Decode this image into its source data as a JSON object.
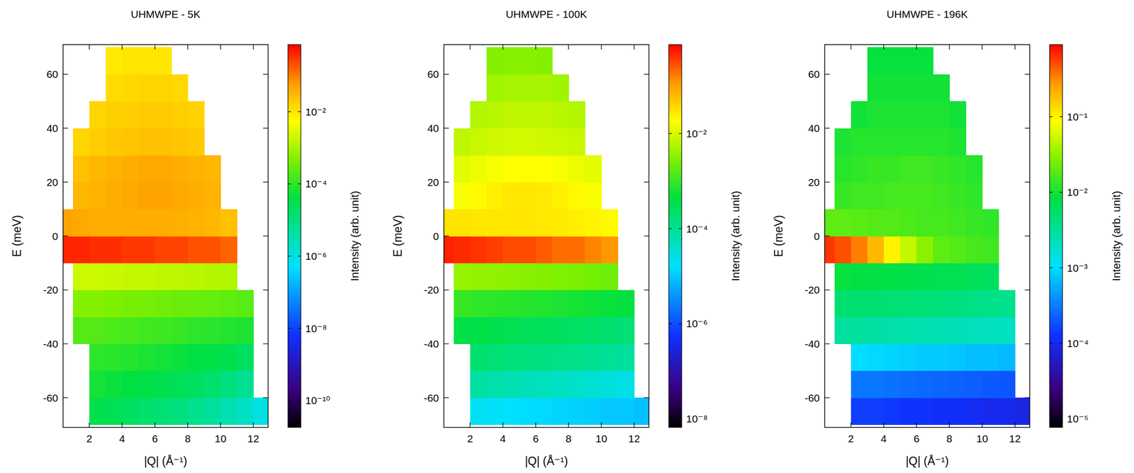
{
  "chart_data": [
    {
      "type": "heatmap",
      "title": "UHMWPE - 5K",
      "x_label": "|Q| (Å⁻¹)",
      "y_label": "E (meV)",
      "xlim": [
        0.4,
        12.9
      ],
      "ylim": [
        -71,
        71
      ],
      "xticks": [
        2,
        4,
        6,
        8,
        10,
        12
      ],
      "yticks": [
        -60,
        -40,
        -20,
        0,
        20,
        40,
        60
      ],
      "x": [
        0.5,
        1.5,
        2.5,
        3.5,
        4.5,
        5.5,
        6.5,
        7.5,
        8.5,
        9.5,
        10.5,
        11.5,
        12.5
      ],
      "y": [
        -65,
        -55,
        -45,
        -35,
        -25,
        -15,
        -5,
        5,
        15,
        25,
        35,
        45,
        55,
        65
      ],
      "values": [
        [
          null,
          null,
          3e-05,
          2.5e-05,
          2e-05,
          1.5e-05,
          1.2e-05,
          1e-05,
          7e-06,
          5e-06,
          3e-06,
          2e-06,
          1e-06
        ],
        [
          null,
          null,
          6e-05,
          5e-05,
          4e-05,
          3.5e-05,
          3e-05,
          2.5e-05,
          2e-05,
          1.5e-05,
          1e-05,
          6e-06,
          null
        ],
        [
          null,
          null,
          0.0001,
          9e-05,
          8e-05,
          7e-05,
          6e-05,
          5e-05,
          4e-05,
          3.5e-05,
          3e-05,
          2e-05,
          null
        ],
        [
          null,
          0.0002,
          0.0002,
          0.00018,
          0.00016,
          0.00014,
          0.00013,
          0.00012,
          0.0001,
          9e-05,
          8e-05,
          7e-05,
          null
        ],
        [
          null,
          0.0005,
          0.0005,
          0.00045,
          0.0004,
          0.00038,
          0.00035,
          0.00032,
          0.0003,
          0.00028,
          0.00025,
          0.00022,
          null
        ],
        [
          null,
          0.002,
          0.002,
          0.0019,
          0.0018,
          0.0017,
          0.0016,
          0.0015,
          0.0014,
          0.0013,
          0.0012,
          null,
          null
        ],
        [
          0.4,
          0.4,
          0.35,
          0.35,
          0.3,
          0.3,
          0.25,
          0.25,
          0.2,
          0.2,
          0.15,
          null,
          null
        ],
        [
          0.05,
          0.045,
          0.04,
          0.04,
          0.04,
          0.04,
          0.04,
          0.038,
          0.035,
          0.03,
          0.025,
          null,
          null
        ],
        [
          null,
          0.03,
          0.035,
          0.04,
          0.045,
          0.05,
          0.05,
          0.045,
          0.04,
          0.035,
          null,
          null,
          null
        ],
        [
          null,
          0.025,
          0.03,
          0.035,
          0.04,
          0.045,
          0.045,
          0.04,
          0.035,
          0.03,
          null,
          null,
          null
        ],
        [
          null,
          0.015,
          0.018,
          0.02,
          0.022,
          0.024,
          0.024,
          0.022,
          0.02,
          null,
          null,
          null,
          null
        ],
        [
          null,
          null,
          0.015,
          0.017,
          0.018,
          0.019,
          0.019,
          0.018,
          0.016,
          null,
          null,
          null,
          null
        ],
        [
          null,
          null,
          null,
          0.013,
          0.014,
          0.015,
          0.015,
          0.014,
          null,
          null,
          null,
          null,
          null
        ],
        [
          null,
          null,
          null,
          0.009,
          0.01,
          0.01,
          0.01,
          null,
          null,
          null,
          null,
          null,
          null
        ]
      ],
      "colorbar_label": "Intensity (arb. unit)",
      "colorbar_range": [
        1.8e-11,
        0.72
      ],
      "colorbar_ticks": [
        {
          "value": 1e-10,
          "label": "10⁻¹⁰"
        },
        {
          "value": 1e-08,
          "label": "10⁻⁸"
        },
        {
          "value": 1e-06,
          "label": "10⁻⁶"
        },
        {
          "value": 0.0001,
          "label": "10⁻⁴"
        },
        {
          "value": 0.01,
          "label": "10⁻²"
        }
      ]
    },
    {
      "type": "heatmap",
      "title": "UHMWPE - 100K",
      "x_label": "|Q| (Å⁻¹)",
      "y_label": "E (meV)",
      "xlim": [
        0.4,
        12.9
      ],
      "ylim": [
        -71,
        71
      ],
      "xticks": [
        2,
        4,
        6,
        8,
        10,
        12
      ],
      "yticks": [
        -60,
        -40,
        -20,
        0,
        20,
        40,
        60
      ],
      "x": [
        0.5,
        1.5,
        2.5,
        3.5,
        4.5,
        5.5,
        6.5,
        7.5,
        8.5,
        9.5,
        10.5,
        11.5,
        12.5
      ],
      "y": [
        -65,
        -55,
        -45,
        -35,
        -25,
        -15,
        -5,
        5,
        15,
        25,
        35,
        45,
        55,
        65
      ],
      "values": [
        [
          null,
          null,
          2e-05,
          1.8e-05,
          1.6e-05,
          1.5e-05,
          1.4e-05,
          1.3e-05,
          1.2e-05,
          1.1e-05,
          1e-05,
          1e-05,
          9e-06
        ],
        [
          null,
          null,
          8e-05,
          7e-05,
          6e-05,
          5.5e-05,
          5e-05,
          4.5e-05,
          4e-05,
          3.5e-05,
          3e-05,
          2.5e-05,
          null
        ],
        [
          null,
          null,
          0.0002,
          0.00018,
          0.00016,
          0.00015,
          0.00014,
          0.00013,
          0.00012,
          0.00011,
          0.0001,
          9e-05,
          null
        ],
        [
          null,
          0.0004,
          0.0004,
          0.00036,
          0.00033,
          0.0003,
          0.00028,
          0.00026,
          0.00024,
          0.00022,
          0.0002,
          0.00018,
          null
        ],
        [
          null,
          0.001,
          0.0009,
          0.00085,
          0.0008,
          0.00075,
          0.0007,
          0.00065,
          0.0006,
          0.00055,
          0.0005,
          0.00045,
          null
        ],
        [
          null,
          0.004,
          0.0038,
          0.0036,
          0.0034,
          0.0032,
          0.003,
          0.0028,
          0.0026,
          0.0024,
          0.0022,
          null,
          null
        ],
        [
          0.5,
          0.45,
          0.4,
          0.35,
          0.3,
          0.3,
          0.25,
          0.2,
          0.2,
          0.15,
          0.12,
          null,
          null
        ],
        [
          0.03,
          0.03,
          0.028,
          0.028,
          0.028,
          0.028,
          0.027,
          0.026,
          0.024,
          0.022,
          0.02,
          null,
          null
        ],
        [
          null,
          0.016,
          0.02,
          0.024,
          0.027,
          0.028,
          0.027,
          0.024,
          0.02,
          0.016,
          null,
          null,
          null
        ],
        [
          null,
          0.012,
          0.014,
          0.016,
          0.018,
          0.019,
          0.018,
          0.016,
          0.014,
          0.012,
          null,
          null,
          null
        ],
        [
          null,
          0.007,
          0.008,
          0.009,
          0.0095,
          0.0095,
          0.009,
          0.0085,
          0.008,
          null,
          null,
          null,
          null
        ],
        [
          null,
          null,
          0.006,
          0.0065,
          0.007,
          0.007,
          0.007,
          0.0065,
          0.006,
          null,
          null,
          null,
          null
        ],
        [
          null,
          null,
          null,
          0.0045,
          0.005,
          0.005,
          0.005,
          0.0045,
          null,
          null,
          null,
          null,
          null
        ],
        [
          null,
          null,
          null,
          0.003,
          0.0032,
          0.0032,
          0.003,
          null,
          null,
          null,
          null,
          null,
          null
        ]
      ],
      "colorbar_label": "Intensity (arb. unit)",
      "colorbar_range": [
        6.6e-09,
        0.74
      ],
      "colorbar_ticks": [
        {
          "value": 1e-08,
          "label": "10⁻⁸"
        },
        {
          "value": 1e-06,
          "label": "10⁻⁶"
        },
        {
          "value": 0.0001,
          "label": "10⁻⁴"
        },
        {
          "value": 0.01,
          "label": "10⁻²"
        }
      ]
    },
    {
      "type": "heatmap",
      "title": "UHMWPE - 196K",
      "x_label": "|Q| (Å⁻¹)",
      "y_label": "E (meV)",
      "xlim": [
        0.4,
        12.9
      ],
      "ylim": [
        -71,
        71
      ],
      "xticks": [
        2,
        4,
        6,
        8,
        10,
        12
      ],
      "yticks": [
        -60,
        -40,
        -20,
        0,
        20,
        40,
        60
      ],
      "x": [
        0.5,
        1.5,
        2.5,
        3.5,
        4.5,
        5.5,
        6.5,
        7.5,
        8.5,
        9.5,
        10.5,
        11.5,
        12.5
      ],
      "y": [
        -65,
        -55,
        -45,
        -35,
        -25,
        -15,
        -5,
        5,
        15,
        25,
        35,
        45,
        55,
        65
      ],
      "values": [
        [
          null,
          null,
          0.00015,
          0.00015,
          0.00014,
          0.00013,
          0.00013,
          0.00012,
          0.00012,
          0.00011,
          0.0001,
          0.0001,
          9e-05
        ],
        [
          null,
          null,
          0.0003,
          0.0003,
          0.00028,
          0.00026,
          0.00025,
          0.00024,
          0.00023,
          0.00022,
          0.00021,
          0.0002,
          null
        ],
        [
          null,
          null,
          0.001,
          0.00095,
          0.0009,
          0.00085,
          0.0008,
          0.0008,
          0.00075,
          0.0007,
          0.0007,
          0.00065,
          null
        ],
        [
          null,
          0.003,
          0.003,
          0.0028,
          0.0027,
          0.0026,
          0.0025,
          0.0024,
          0.0023,
          0.0022,
          0.0021,
          0.002,
          null
        ],
        [
          null,
          0.005,
          0.005,
          0.005,
          0.0048,
          0.0046,
          0.0045,
          0.0044,
          0.0042,
          0.004,
          0.0038,
          0.0036,
          null
        ],
        [
          null,
          0.009,
          0.0085,
          0.008,
          0.008,
          0.0075,
          0.0075,
          0.007,
          0.007,
          0.0065,
          0.006,
          null,
          null
        ],
        [
          0.6,
          0.5,
          0.35,
          0.2,
          0.1,
          0.05,
          0.03,
          0.02,
          0.018,
          0.016,
          0.015,
          null,
          null
        ],
        [
          0.02,
          0.02,
          0.019,
          0.018,
          0.018,
          0.017,
          0.016,
          0.016,
          0.015,
          0.014,
          0.013,
          null,
          null
        ],
        [
          null,
          0.014,
          0.015,
          0.015,
          0.016,
          0.016,
          0.016,
          0.015,
          0.014,
          0.013,
          null,
          null,
          null
        ],
        [
          null,
          0.012,
          0.013,
          0.014,
          0.014,
          0.015,
          0.015,
          0.014,
          0.013,
          0.012,
          null,
          null,
          null
        ],
        [
          null,
          0.011,
          0.012,
          0.012,
          0.012,
          0.012,
          0.012,
          0.012,
          0.011,
          null,
          null,
          null,
          null
        ],
        [
          null,
          null,
          0.01,
          0.011,
          0.011,
          0.011,
          0.011,
          0.011,
          0.01,
          null,
          null,
          null,
          null
        ],
        [
          null,
          null,
          null,
          0.01,
          0.01,
          0.01,
          0.01,
          0.01,
          null,
          null,
          null,
          null,
          null
        ],
        [
          null,
          null,
          null,
          0.009,
          0.009,
          0.009,
          0.009,
          null,
          null,
          null,
          null,
          null,
          null
        ]
      ],
      "colorbar_label": "Intensity (arb. unit)",
      "colorbar_range": [
        7.7e-06,
        0.9
      ],
      "colorbar_ticks": [
        {
          "value": 1e-05,
          "label": "10⁻⁵"
        },
        {
          "value": 0.0001,
          "label": "10⁻⁴"
        },
        {
          "value": 0.001,
          "label": "10⁻³"
        },
        {
          "value": 0.01,
          "label": "10⁻²"
        },
        {
          "value": 0.1,
          "label": "10⁻¹"
        }
      ]
    }
  ]
}
